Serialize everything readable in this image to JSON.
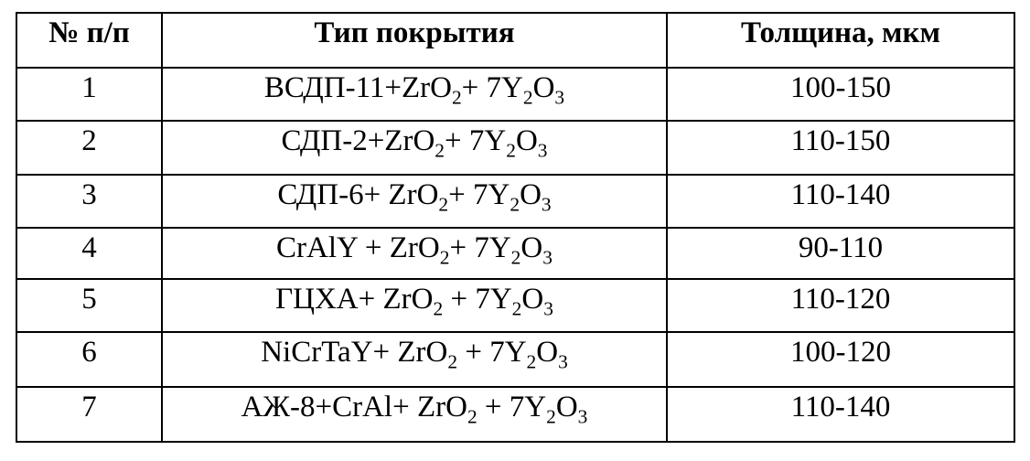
{
  "page": {
    "background": "#ffffff",
    "border_color": "#000000",
    "text_color": "#000000"
  },
  "header": {
    "col_num": "№ п/п",
    "col_type": "Тип покрытия",
    "col_thickness": "Толщина, мкм"
  },
  "rows": [
    {
      "num": "1",
      "coating": [
        {
          "t": "ВСДП-11+ZrO"
        },
        {
          "t": "2",
          "sub": true
        },
        {
          "t": "+ 7Y"
        },
        {
          "t": "2",
          "sub": true
        },
        {
          "t": "O"
        },
        {
          "t": "3",
          "sub": true
        }
      ],
      "coating_text": "ВСДП-11+ZrO₂+ 7Y₂O₃",
      "thickness": "100-150"
    },
    {
      "num": "2",
      "coating": [
        {
          "t": "СДП-2+ZrO"
        },
        {
          "t": "2",
          "sub": true
        },
        {
          "t": "+ 7Y"
        },
        {
          "t": "2",
          "sub": true
        },
        {
          "t": "O"
        },
        {
          "t": "3",
          "sub": true
        }
      ],
      "coating_text": "СДП-2+ZrO₂+ 7Y₂O₃",
      "thickness": "110-150"
    },
    {
      "num": "3",
      "coating": [
        {
          "t": "СДП-6+ ZrO"
        },
        {
          "t": "2",
          "sub": true
        },
        {
          "t": "+ 7Y"
        },
        {
          "t": "2",
          "sub": true
        },
        {
          "t": "O"
        },
        {
          "t": "3",
          "sub": true
        }
      ],
      "coating_text": "СДП-6+ ZrO₂+ 7Y₂O₃",
      "thickness": "110-140"
    },
    {
      "num": "4",
      "coating": [
        {
          "t": "CrAlY + ZrO"
        },
        {
          "t": "2",
          "sub": true
        },
        {
          "t": "+ 7Y"
        },
        {
          "t": "2",
          "sub": true
        },
        {
          "t": "O"
        },
        {
          "t": "3",
          "sub": true
        }
      ],
      "coating_text": "CrAlY + ZrO₂+ 7Y₂O₃",
      "thickness": "90-110"
    },
    {
      "num": "5",
      "coating": [
        {
          "t": "ГЦХА+ ZrO"
        },
        {
          "t": "2",
          "sub": true
        },
        {
          "t": " + 7Y"
        },
        {
          "t": "2",
          "sub": true
        },
        {
          "t": "O"
        },
        {
          "t": "3",
          "sub": true
        }
      ],
      "coating_text": "ГЦХА+ ZrO₂ + 7Y₂O₃",
      "thickness": "110-120"
    },
    {
      "num": "6",
      "coating": [
        {
          "t": "NiCrTaY+ ZrO"
        },
        {
          "t": "2",
          "sub": true
        },
        {
          "t": " + 7Y"
        },
        {
          "t": "2",
          "sub": true
        },
        {
          "t": "O"
        },
        {
          "t": "3",
          "sub": true
        }
      ],
      "coating_text": "NiCrTaY+ ZrO₂ + 7Y₂O₃",
      "thickness": "100-120"
    },
    {
      "num": "7",
      "coating": [
        {
          "t": "АЖ-8+CrAl+ ZrO"
        },
        {
          "t": "2",
          "sub": true
        },
        {
          "t": " + 7Y"
        },
        {
          "t": "2",
          "sub": true
        },
        {
          "t": "O"
        },
        {
          "t": "3",
          "sub": true
        }
      ],
      "coating_text": "АЖ-8+CrAl+ ZrO₂ + 7Y₂O₃",
      "thickness": "110-140"
    }
  ]
}
